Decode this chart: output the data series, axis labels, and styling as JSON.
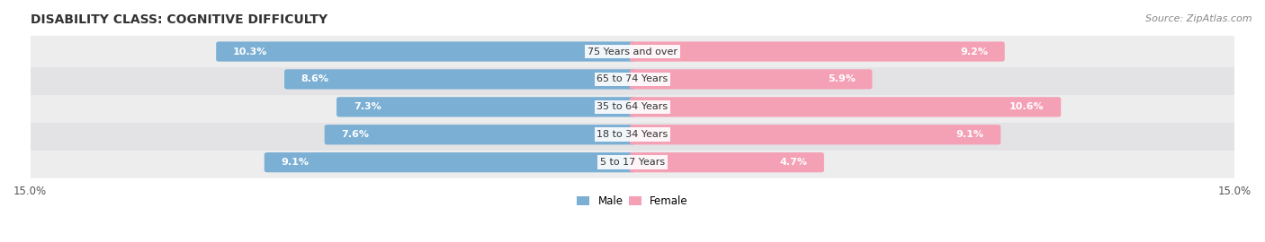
{
  "title": "DISABILITY CLASS: COGNITIVE DIFFICULTY",
  "source": "Source: ZipAtlas.com",
  "categories": [
    "5 to 17 Years",
    "18 to 34 Years",
    "35 to 64 Years",
    "65 to 74 Years",
    "75 Years and over"
  ],
  "male_values": [
    9.1,
    7.6,
    7.3,
    8.6,
    10.3
  ],
  "female_values": [
    4.7,
    9.1,
    10.6,
    5.9,
    9.2
  ],
  "male_color": "#7bafd4",
  "female_color": "#f4a0b5",
  "max_val": 15.0,
  "label_color_inside": "#ffffff",
  "label_color_outside": "#555555",
  "title_fontsize": 10,
  "source_fontsize": 8,
  "bar_label_fontsize": 8,
  "axis_label_fontsize": 8.5,
  "category_fontsize": 8,
  "legend_fontsize": 8.5,
  "background_color": "#ffffff"
}
